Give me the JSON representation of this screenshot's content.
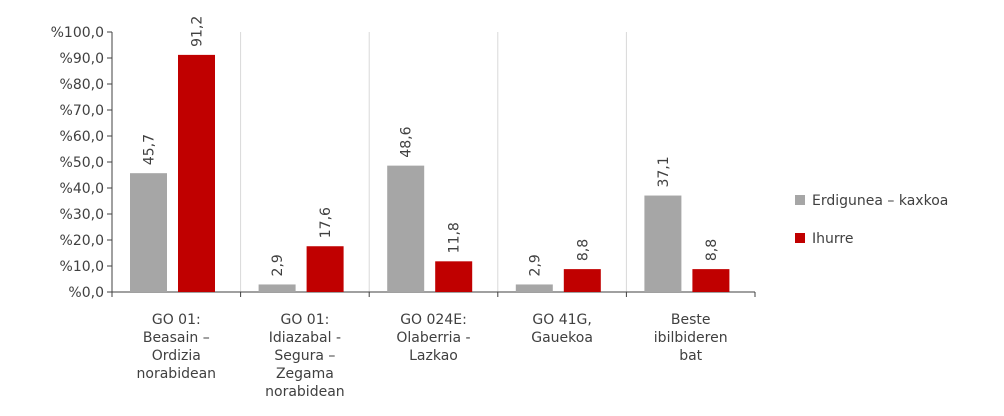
{
  "chart_data": {
    "type": "bar",
    "categories": [
      [
        "GO 01:",
        "Beasain –",
        "Ordizia",
        "norabidean"
      ],
      [
        "GO 01:",
        "Idiazabal -",
        "Segura –",
        "Zegama",
        "norabidean"
      ],
      [
        "GO 024E:",
        "Olaberria -",
        "Lazkao"
      ],
      [
        "GO 41G,",
        "Gauekoa"
      ],
      [
        "Beste",
        "ibilbideren",
        "bat"
      ]
    ],
    "series": [
      {
        "name": "Erdigunea – kaxkoa",
        "color": "#a6a6a6",
        "values": [
          45.7,
          2.9,
          48.6,
          2.9,
          37.1
        ],
        "value_labels": [
          "45,7",
          "2,9",
          "48,6",
          "2,9",
          "37,1"
        ]
      },
      {
        "name": "Ihurre",
        "color": "#c00000",
        "values": [
          91.2,
          17.6,
          11.8,
          8.8,
          8.8
        ],
        "value_labels": [
          "91,2",
          "17,6",
          "11,8",
          "8,8",
          "8,8"
        ]
      }
    ],
    "ylim": [
      0,
      100
    ],
    "yticks": [
      {
        "value": 0,
        "label": "%0,0"
      },
      {
        "value": 10,
        "label": "%10,0"
      },
      {
        "value": 20,
        "label": "%20,0"
      },
      {
        "value": 30,
        "label": "%30,0"
      },
      {
        "value": 40,
        "label": "%40,0"
      },
      {
        "value": 50,
        "label": "%50,0"
      },
      {
        "value": 60,
        "label": "%60,0"
      },
      {
        "value": 70,
        "label": "%70,0"
      },
      {
        "value": 80,
        "label": "%80,0"
      },
      {
        "value": 90,
        "label": "%90,0"
      },
      {
        "value": 100,
        "label": "%100,0"
      }
    ],
    "legend": "right"
  }
}
